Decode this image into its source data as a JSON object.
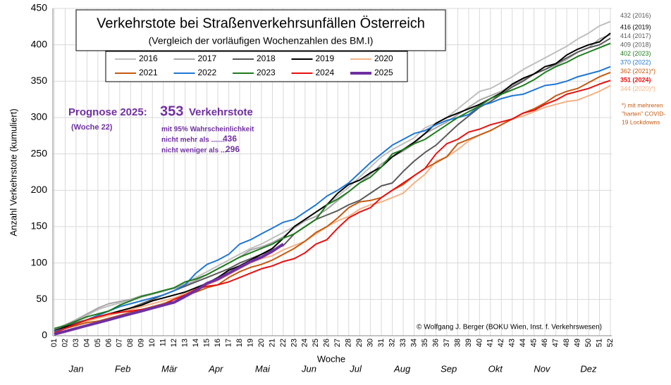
{
  "chart_data": {
    "type": "line",
    "title": "Verkehrstote bei Straßenverkehrsunfällen Österreich",
    "subtitle": "(Vergleich der vorläufigen Wochenzahlen  des BM.I)",
    "y_label": "Anzahl Verkehrstote  (kumuliert)",
    "x_label": "Woche",
    "months": [
      "Jan",
      "Feb",
      "Mär",
      "Apr",
      "Mai",
      "Jun",
      "Jul",
      "Aug",
      "Sep",
      "Okt",
      "Nov",
      "Dez"
    ],
    "categories": [
      "01",
      "02",
      "03",
      "04",
      "05",
      "06",
      "07",
      "08",
      "09",
      "10",
      "11",
      "12",
      "13",
      "14",
      "15",
      "16",
      "17",
      "18",
      "19",
      "20",
      "21",
      "22",
      "23",
      "24",
      "25",
      "26",
      "27",
      "28",
      "29",
      "30",
      "31",
      "32",
      "33",
      "34",
      "35",
      "36",
      "37",
      "38",
      "39",
      "40",
      "41",
      "42",
      "43",
      "44",
      "45",
      "46",
      "47",
      "48",
      "49",
      "50",
      "51",
      "52"
    ],
    "ylim": [
      0,
      450
    ],
    "yticks": [
      0,
      50,
      100,
      150,
      200,
      250,
      300,
      350,
      400,
      450
    ],
    "grid": true,
    "series": [
      {
        "name": "2016",
        "color": "#bfbfbf",
        "end_label": "432 (2016)",
        "values": [
          8,
          14,
          20,
          28,
          36,
          41,
          45,
          49,
          53,
          57,
          61,
          66,
          72,
          80,
          88,
          96,
          104,
          112,
          120,
          126,
          134,
          142,
          150,
          160,
          170,
          180,
          192,
          204,
          218,
          232,
          246,
          256,
          264,
          272,
          286,
          292,
          300,
          312,
          324,
          336,
          340,
          348,
          356,
          366,
          374,
          382,
          390,
          398,
          408,
          416,
          426,
          432
        ]
      },
      {
        "name": "2017",
        "color": "#a6a6a6",
        "end_label": "414 (2017)",
        "values": [
          9,
          15,
          22,
          30,
          38,
          44,
          47,
          50,
          55,
          58,
          62,
          65,
          70,
          76,
          84,
          92,
          100,
          108,
          118,
          122,
          128,
          136,
          148,
          158,
          164,
          174,
          186,
          198,
          210,
          222,
          236,
          246,
          254,
          264,
          278,
          286,
          294,
          304,
          314,
          324,
          330,
          336,
          344,
          352,
          360,
          366,
          372,
          380,
          390,
          396,
          408,
          414
        ]
      },
      {
        "name": "2018",
        "color": "#595959",
        "end_label": "409 (2018)",
        "values": [
          6,
          12,
          18,
          22,
          26,
          28,
          32,
          38,
          44,
          50,
          56,
          62,
          68,
          74,
          80,
          86,
          92,
          100,
          106,
          112,
          118,
          124,
          140,
          150,
          160,
          166,
          172,
          180,
          186,
          196,
          206,
          210,
          226,
          240,
          252,
          262,
          276,
          290,
          302,
          314,
          322,
          332,
          342,
          350,
          360,
          366,
          374,
          382,
          390,
          396,
          400,
          409
        ]
      },
      {
        "name": "2019",
        "color": "#000000",
        "end_label": "416 (2019)",
        "values": [
          7,
          12,
          16,
          20,
          26,
          30,
          34,
          38,
          42,
          48,
          52,
          56,
          60,
          66,
          72,
          80,
          90,
          96,
          104,
          112,
          120,
          134,
          150,
          160,
          170,
          180,
          196,
          208,
          214,
          224,
          232,
          246,
          256,
          266,
          278,
          292,
          300,
          306,
          312,
          318,
          326,
          334,
          346,
          354,
          360,
          370,
          374,
          386,
          394,
          400,
          404,
          416
        ]
      },
      {
        "name": "2020",
        "color": "#f4b183",
        "end_label": "344 (2020)*)",
        "values": [
          5,
          10,
          14,
          20,
          24,
          28,
          32,
          36,
          40,
          44,
          48,
          52,
          58,
          64,
          70,
          76,
          84,
          92,
          100,
          106,
          110,
          118,
          124,
          130,
          140,
          150,
          158,
          164,
          174,
          180,
          184,
          190,
          196,
          210,
          222,
          240,
          246,
          256,
          268,
          276,
          282,
          290,
          298,
          302,
          308,
          314,
          318,
          322,
          324,
          330,
          336,
          344
        ]
      },
      {
        "name": "2021",
        "color": "#c55a11",
        "end_label": "362 (2021)*)",
        "values": [
          6,
          10,
          14,
          18,
          20,
          24,
          28,
          32,
          36,
          40,
          44,
          50,
          56,
          60,
          66,
          70,
          80,
          88,
          94,
          98,
          104,
          112,
          120,
          130,
          142,
          150,
          162,
          176,
          184,
          186,
          190,
          200,
          208,
          220,
          230,
          238,
          246,
          264,
          270,
          276,
          282,
          290,
          298,
          306,
          312,
          320,
          330,
          336,
          340,
          348,
          356,
          362
        ]
      },
      {
        "name": "2022",
        "color": "#1f77d4",
        "end_label": "370 (2022)",
        "values": [
          6,
          10,
          16,
          22,
          28,
          34,
          40,
          44,
          48,
          52,
          56,
          62,
          70,
          86,
          98,
          104,
          112,
          126,
          132,
          140,
          148,
          156,
          160,
          170,
          180,
          192,
          200,
          210,
          224,
          238,
          250,
          262,
          270,
          278,
          282,
          290,
          296,
          300,
          304,
          316,
          320,
          326,
          330,
          332,
          338,
          344,
          346,
          350,
          356,
          360,
          364,
          370
        ]
      },
      {
        "name": "2023",
        "color": "#1e7b1e",
        "end_label": "402 (2023)",
        "values": [
          10,
          14,
          20,
          26,
          30,
          34,
          42,
          48,
          54,
          58,
          62,
          66,
          74,
          78,
          84,
          92,
          100,
          108,
          114,
          120,
          126,
          134,
          140,
          150,
          160,
          180,
          188,
          198,
          210,
          218,
          232,
          250,
          256,
          264,
          270,
          280,
          290,
          300,
          308,
          316,
          326,
          332,
          338,
          344,
          352,
          362,
          370,
          376,
          384,
          390,
          396,
          402
        ]
      },
      {
        "name": "2024",
        "color": "#e81010",
        "end_label": "351 (2024)",
        "values": [
          4,
          10,
          16,
          22,
          26,
          30,
          32,
          34,
          36,
          38,
          42,
          50,
          56,
          64,
          68,
          70,
          74,
          80,
          86,
          92,
          96,
          102,
          106,
          114,
          126,
          132,
          148,
          162,
          170,
          176,
          190,
          200,
          210,
          220,
          230,
          250,
          264,
          270,
          280,
          284,
          290,
          294,
          298,
          306,
          310,
          318,
          324,
          332,
          336,
          340,
          346,
          351
        ]
      },
      {
        "name": "2025",
        "color": "#7030a0",
        "values": [
          2,
          6,
          10,
          14,
          18,
          22,
          26,
          30,
          34,
          38,
          42,
          46,
          54,
          62,
          72,
          78,
          86,
          94,
          102,
          108,
          116,
          126,
          null,
          null,
          null,
          null,
          null,
          null,
          null,
          null,
          null,
          null,
          null,
          null,
          null,
          null,
          null,
          null,
          null,
          null,
          null,
          null,
          null,
          null,
          null,
          null,
          null,
          null,
          null,
          null,
          null,
          null
        ]
      }
    ],
    "annotations": {
      "prognosis_label": "Prognose 2025:",
      "prognosis_value": 353,
      "prognosis_unit": "Verkehrstote",
      "prognosis_week": "(Woche  22)",
      "confidence": "mit 95% Wahrscheinlichkeit",
      "upper_label": "nicht mehr als .......",
      "upper_value": 436,
      "lower_label": "nicht weniger als ...",
      "lower_value": 296,
      "covid_note": [
        "*) mit mehreren",
        "\"harten\"  COVID-",
        "19 Lockdowns"
      ],
      "credit": "© Wolfgang J. Berger (BOKU Wien, Inst. f. Verkehrswesen)"
    }
  }
}
